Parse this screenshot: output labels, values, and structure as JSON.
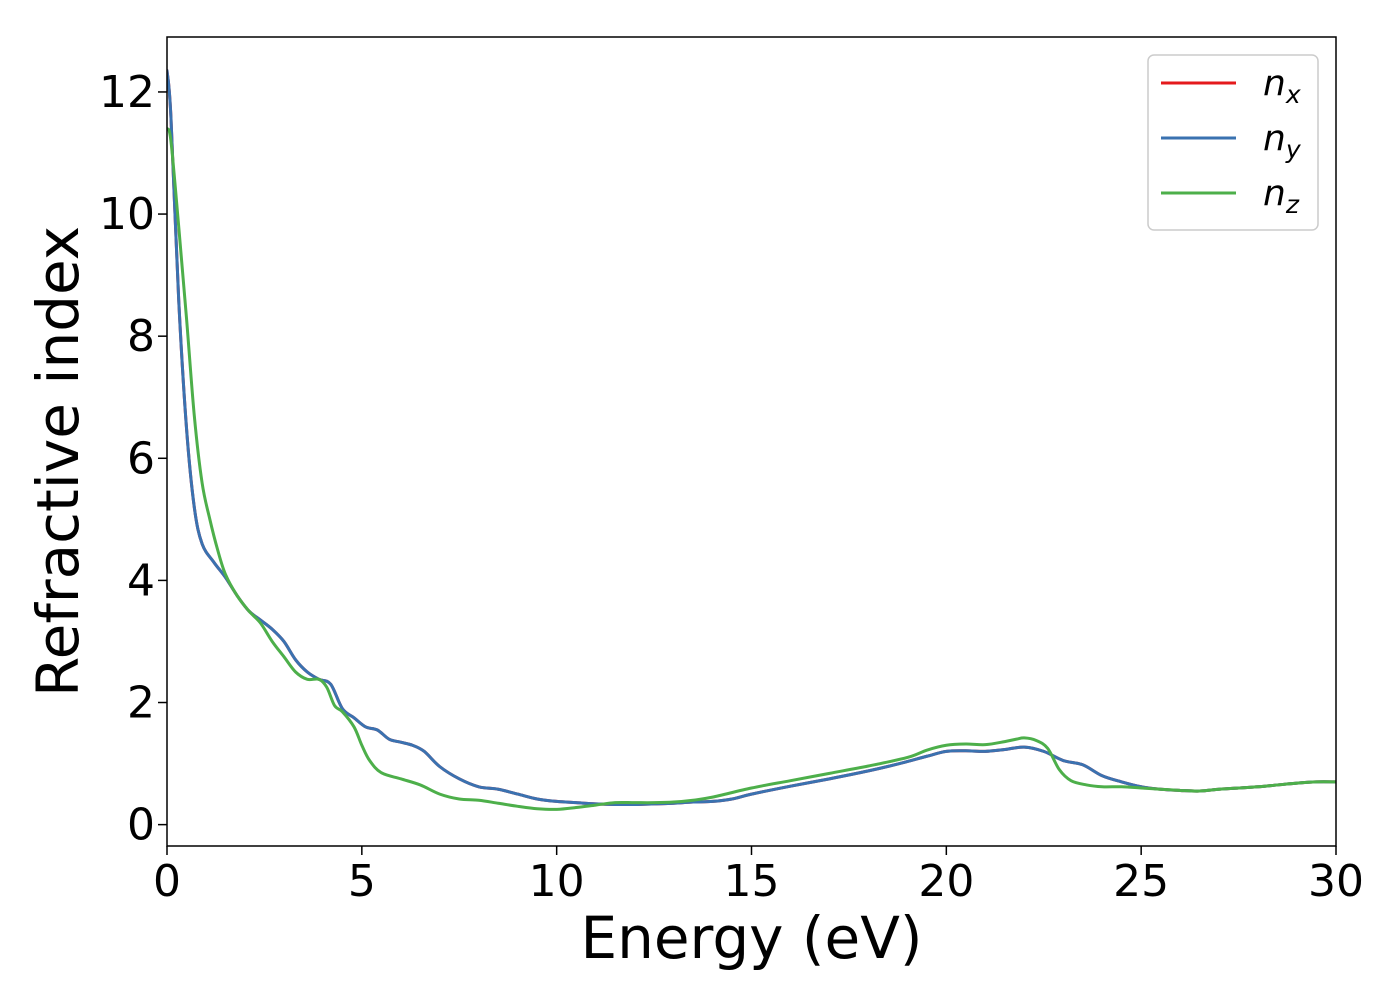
{
  "chart_data": {
    "type": "line",
    "title": "",
    "xlabel": "Energy (eV)",
    "ylabel": "Refractive index",
    "xlim": [
      0,
      30
    ],
    "ylim": [
      -0.35,
      12.9
    ],
    "xticks": [
      0,
      5,
      10,
      15,
      20,
      25,
      30
    ],
    "yticks": [
      0,
      2,
      4,
      6,
      8,
      10,
      12
    ],
    "grid": false,
    "legend_position": "top-right",
    "series": [
      {
        "name": "n",
        "subscript": "x",
        "color": "#e41a1c",
        "x": [
          0,
          0.1,
          0.3,
          0.5,
          0.7,
          0.9,
          1.2,
          1.5,
          1.8,
          2.1,
          2.4,
          2.7,
          3.0,
          3.3,
          3.6,
          3.9,
          4.2,
          4.5,
          4.8,
          5.1,
          5.4,
          5.7,
          6.0,
          6.3,
          6.6,
          7.0,
          7.5,
          8.0,
          8.5,
          9.0,
          9.5,
          10.0,
          10.5,
          11.0,
          11.5,
          12.0,
          12.5,
          13.0,
          13.5,
          14.0,
          14.5,
          15.0,
          16.0,
          17.0,
          18.0,
          18.8,
          19.5,
          20.0,
          20.5,
          21.0,
          21.5,
          22.0,
          22.5,
          23.0,
          23.5,
          24.0,
          24.5,
          25.0,
          25.5,
          26.0,
          26.5,
          27.0,
          27.5,
          28.0,
          28.5,
          29.0,
          29.5,
          30.0
        ],
        "y": [
          12.35,
          11.6,
          8.6,
          6.5,
          5.2,
          4.6,
          4.3,
          4.05,
          3.75,
          3.5,
          3.35,
          3.2,
          3.0,
          2.7,
          2.5,
          2.38,
          2.3,
          1.9,
          1.75,
          1.6,
          1.55,
          1.4,
          1.35,
          1.3,
          1.2,
          0.95,
          0.75,
          0.62,
          0.58,
          0.5,
          0.42,
          0.38,
          0.36,
          0.34,
          0.33,
          0.33,
          0.34,
          0.35,
          0.37,
          0.38,
          0.42,
          0.5,
          0.63,
          0.75,
          0.88,
          1.0,
          1.12,
          1.2,
          1.21,
          1.2,
          1.23,
          1.27,
          1.2,
          1.05,
          0.98,
          0.8,
          0.7,
          0.62,
          0.58,
          0.56,
          0.55,
          0.58,
          0.6,
          0.62,
          0.65,
          0.68,
          0.7,
          0.7
        ]
      },
      {
        "name": "n",
        "subscript": "y",
        "color": "#3a72b0",
        "x": [
          0,
          0.1,
          0.3,
          0.5,
          0.7,
          0.9,
          1.2,
          1.5,
          1.8,
          2.1,
          2.4,
          2.7,
          3.0,
          3.3,
          3.6,
          3.9,
          4.2,
          4.5,
          4.8,
          5.1,
          5.4,
          5.7,
          6.0,
          6.3,
          6.6,
          7.0,
          7.5,
          8.0,
          8.5,
          9.0,
          9.5,
          10.0,
          10.5,
          11.0,
          11.5,
          12.0,
          12.5,
          13.0,
          13.5,
          14.0,
          14.5,
          15.0,
          16.0,
          17.0,
          18.0,
          18.8,
          19.5,
          20.0,
          20.5,
          21.0,
          21.5,
          22.0,
          22.5,
          23.0,
          23.5,
          24.0,
          24.5,
          25.0,
          25.5,
          26.0,
          26.5,
          27.0,
          27.5,
          28.0,
          28.5,
          29.0,
          29.5,
          30.0
        ],
        "y": [
          12.35,
          11.6,
          8.6,
          6.5,
          5.2,
          4.6,
          4.3,
          4.05,
          3.75,
          3.5,
          3.35,
          3.2,
          3.0,
          2.7,
          2.5,
          2.38,
          2.3,
          1.9,
          1.75,
          1.6,
          1.55,
          1.4,
          1.35,
          1.3,
          1.2,
          0.95,
          0.75,
          0.62,
          0.58,
          0.5,
          0.42,
          0.38,
          0.36,
          0.34,
          0.33,
          0.33,
          0.34,
          0.35,
          0.37,
          0.38,
          0.42,
          0.5,
          0.63,
          0.75,
          0.88,
          1.0,
          1.12,
          1.2,
          1.21,
          1.2,
          1.23,
          1.27,
          1.2,
          1.05,
          0.98,
          0.8,
          0.7,
          0.62,
          0.58,
          0.56,
          0.55,
          0.58,
          0.6,
          0.62,
          0.65,
          0.68,
          0.7,
          0.7
        ]
      },
      {
        "name": "n",
        "subscript": "z",
        "color": "#4daf4a",
        "x": [
          0,
          0.1,
          0.3,
          0.5,
          0.7,
          0.9,
          1.1,
          1.3,
          1.5,
          1.8,
          2.1,
          2.4,
          2.7,
          3.0,
          3.3,
          3.6,
          3.9,
          4.1,
          4.3,
          4.5,
          4.8,
          5.0,
          5.2,
          5.5,
          6.0,
          6.5,
          7.0,
          7.5,
          8.0,
          8.5,
          9.0,
          9.5,
          10.0,
          10.5,
          11.0,
          11.5,
          12.0,
          12.5,
          13.0,
          13.5,
          14.0,
          15.0,
          16.0,
          17.0,
          18.0,
          19.0,
          19.5,
          20.0,
          20.5,
          21.0,
          21.5,
          21.8,
          22.0,
          22.3,
          22.6,
          22.9,
          23.2,
          23.6,
          24.0,
          24.5,
          25.0,
          25.5,
          26.0,
          26.5,
          27.0,
          27.5,
          28.0,
          28.5,
          29.0,
          29.5,
          30.0
        ],
        "y": [
          11.4,
          11.2,
          9.8,
          8.3,
          6.7,
          5.6,
          5.0,
          4.5,
          4.1,
          3.75,
          3.5,
          3.3,
          3.0,
          2.75,
          2.5,
          2.38,
          2.38,
          2.25,
          1.95,
          1.85,
          1.6,
          1.3,
          1.05,
          0.85,
          0.75,
          0.65,
          0.5,
          0.42,
          0.4,
          0.35,
          0.3,
          0.26,
          0.25,
          0.28,
          0.32,
          0.36,
          0.36,
          0.36,
          0.37,
          0.4,
          0.45,
          0.6,
          0.72,
          0.84,
          0.96,
          1.1,
          1.22,
          1.3,
          1.32,
          1.31,
          1.36,
          1.4,
          1.42,
          1.38,
          1.25,
          0.9,
          0.72,
          0.65,
          0.62,
          0.62,
          0.6,
          0.58,
          0.56,
          0.55,
          0.58,
          0.6,
          0.62,
          0.65,
          0.68,
          0.7,
          0.7
        ]
      }
    ]
  }
}
